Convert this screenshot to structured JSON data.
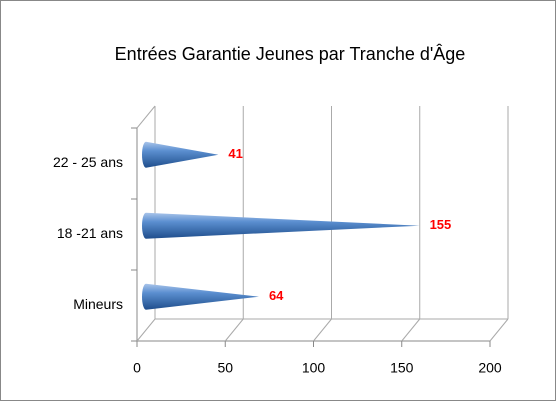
{
  "chart_data": {
    "type": "cone-bar",
    "title": "Entrées Garantie Jeunes par Tranche d'Âge",
    "categories": [
      "Mineurs",
      "18 -21 ans",
      "22 - 25 ans"
    ],
    "values": [
      64,
      155,
      41
    ],
    "color": "#4f81bd",
    "label_color": "#ff0000",
    "xlim": [
      0,
      200
    ],
    "xticks": [
      0,
      50,
      100,
      150,
      200
    ],
    "grid": true
  }
}
